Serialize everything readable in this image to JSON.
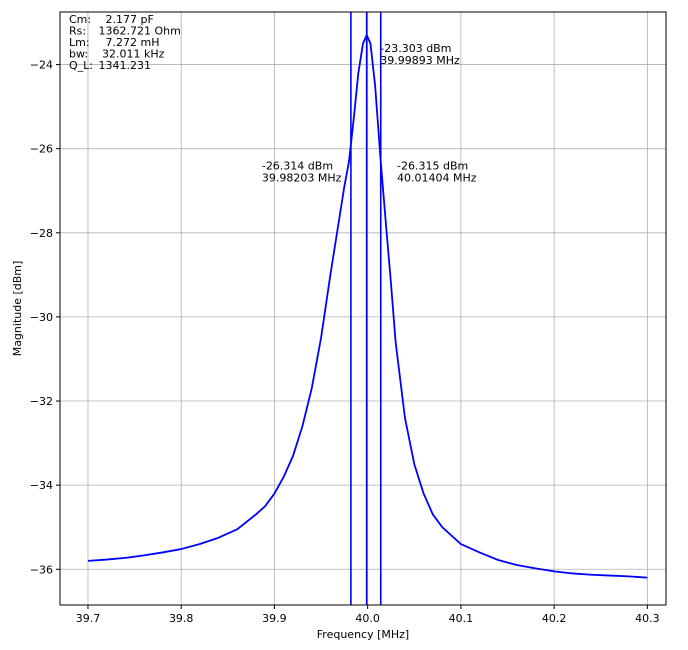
{
  "chart_data": {
    "type": "line",
    "title": "",
    "xlabel": "Frequency [MHz]",
    "ylabel": "Magnitude [dBm]",
    "xlim": [
      39.67,
      40.32
    ],
    "ylim": [
      -36.85,
      -22.75
    ],
    "grid": true,
    "xticks": [
      39.7,
      39.8,
      39.9,
      40.0,
      40.1,
      40.2,
      40.3
    ],
    "xtick_labels": [
      "39.7",
      "39.8",
      "39.9",
      "40.0",
      "40.1",
      "40.2",
      "40.3"
    ],
    "yticks": [
      -24,
      -26,
      -28,
      -30,
      -32,
      -34,
      -36
    ],
    "ytick_labels": [
      "−24",
      "−26",
      "−28",
      "−30",
      "−32",
      "−34",
      "−36"
    ],
    "line_color": "#0000ff",
    "series": [
      {
        "x": [
          39.7,
          39.72,
          39.74,
          39.76,
          39.78,
          39.8,
          39.82,
          39.84,
          39.86,
          39.88,
          39.89,
          39.9,
          39.91,
          39.92,
          39.93,
          39.94,
          39.95,
          39.96,
          39.97,
          39.975,
          39.98,
          39.985,
          39.99,
          39.995,
          39.999,
          40.003,
          40.008,
          40.014,
          40.02,
          40.025,
          40.03,
          40.04,
          40.05,
          40.06,
          40.07,
          40.08,
          40.09,
          40.1,
          40.12,
          40.14,
          40.16,
          40.18,
          40.2,
          40.22,
          40.24,
          40.26,
          40.28,
          40.3
        ],
        "y": [
          -35.8,
          -35.77,
          -35.73,
          -35.67,
          -35.6,
          -35.52,
          -35.4,
          -35.25,
          -35.05,
          -34.7,
          -34.5,
          -34.2,
          -33.8,
          -33.3,
          -32.6,
          -31.7,
          -30.5,
          -29.0,
          -27.6,
          -26.9,
          -26.3,
          -25.3,
          -24.2,
          -23.5,
          -23.3,
          -23.5,
          -24.5,
          -26.3,
          -27.9,
          -29.2,
          -30.6,
          -32.4,
          -33.5,
          -34.2,
          -34.7,
          -35.0,
          -35.2,
          -35.4,
          -35.6,
          -35.78,
          -35.9,
          -35.98,
          -36.05,
          -36.1,
          -36.13,
          -36.15,
          -36.17,
          -36.2
        ]
      }
    ],
    "vlines": [
      39.98203,
      39.99893,
      40.01404
    ],
    "annotations": [
      {
        "lines": [
          "-23.303 dBm",
          "39.99893 MHz"
        ],
        "x": 40.0135,
        "y": -23.7
      },
      {
        "lines": [
          "-26.314 dBm",
          "39.98203 MHz"
        ],
        "x": 39.8865,
        "y": -26.5
      },
      {
        "lines": [
          "-26.315 dBm",
          "40.01404 MHz"
        ],
        "x": 40.0315,
        "y": -26.5
      }
    ],
    "params": [
      {
        "label": "Cm:",
        "value": "   2.177 pF"
      },
      {
        "label": "Rs:",
        "value": " 1362.721 Ohm"
      },
      {
        "label": "Lm:",
        "value": "   7.272 mH"
      },
      {
        "label": "bw:",
        "value": "  32.011 kHz"
      },
      {
        "label": "Q_L:",
        "value": " 1341.231"
      }
    ]
  }
}
